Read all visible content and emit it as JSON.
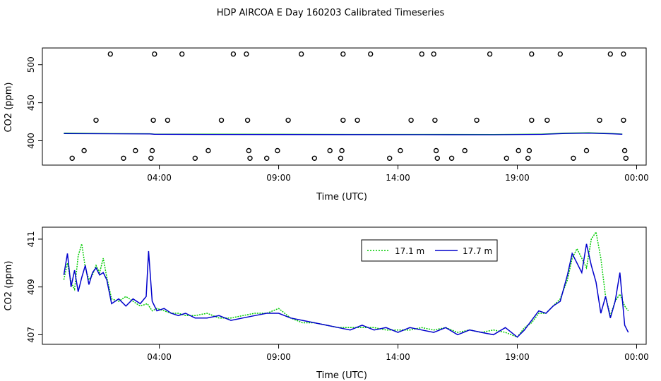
{
  "figure": {
    "title": "HDP AIRCOA E  Day 160203  Calibrated Timeseries"
  },
  "colors": {
    "green_series": "#00cc00",
    "blue_series": "#0000cc",
    "markers": "#000000",
    "frame": "#000000"
  },
  "chart_data": [
    {
      "type": "scatter",
      "xlabel": "Time (UTC)",
      "ylabel": "CO2 (ppm)",
      "x_unit": "hours UTC",
      "xlim": [
        -0.9,
        24.4
      ],
      "ylim": [
        368,
        522
      ],
      "x_ticks": [
        4,
        9,
        14,
        19,
        24
      ],
      "x_tick_labels": [
        "04:00",
        "09:00",
        "14:00",
        "19:00",
        "00:00"
      ],
      "y_ticks": [
        400,
        450,
        500
      ],
      "y_tick_labels": [
        "400",
        "450",
        "500"
      ],
      "grid": false,
      "legend": "none",
      "points": [
        {
          "x": 1.95,
          "y": 514
        },
        {
          "x": 3.8,
          "y": 514
        },
        {
          "x": 4.95,
          "y": 514
        },
        {
          "x": 7.1,
          "y": 514
        },
        {
          "x": 7.65,
          "y": 514
        },
        {
          "x": 9.95,
          "y": 514
        },
        {
          "x": 11.7,
          "y": 514
        },
        {
          "x": 12.85,
          "y": 514
        },
        {
          "x": 15.0,
          "y": 514
        },
        {
          "x": 15.5,
          "y": 514
        },
        {
          "x": 17.85,
          "y": 514
        },
        {
          "x": 19.6,
          "y": 514
        },
        {
          "x": 20.8,
          "y": 514
        },
        {
          "x": 22.9,
          "y": 514
        },
        {
          "x": 23.45,
          "y": 514
        },
        {
          "x": 1.35,
          "y": 427
        },
        {
          "x": 3.75,
          "y": 427
        },
        {
          "x": 4.35,
          "y": 427
        },
        {
          "x": 6.6,
          "y": 427
        },
        {
          "x": 7.7,
          "y": 427
        },
        {
          "x": 9.4,
          "y": 427
        },
        {
          "x": 11.7,
          "y": 427
        },
        {
          "x": 12.3,
          "y": 427
        },
        {
          "x": 14.55,
          "y": 427
        },
        {
          "x": 15.55,
          "y": 427
        },
        {
          "x": 17.3,
          "y": 427
        },
        {
          "x": 19.6,
          "y": 427
        },
        {
          "x": 20.25,
          "y": 427
        },
        {
          "x": 22.45,
          "y": 427
        },
        {
          "x": 23.45,
          "y": 427
        },
        {
          "x": 0.85,
          "y": 387
        },
        {
          "x": 3.0,
          "y": 387
        },
        {
          "x": 3.7,
          "y": 387
        },
        {
          "x": 6.05,
          "y": 387
        },
        {
          "x": 7.75,
          "y": 387
        },
        {
          "x": 8.95,
          "y": 387
        },
        {
          "x": 11.15,
          "y": 387
        },
        {
          "x": 11.65,
          "y": 387
        },
        {
          "x": 14.1,
          "y": 387
        },
        {
          "x": 15.6,
          "y": 387
        },
        {
          "x": 16.8,
          "y": 387
        },
        {
          "x": 19.05,
          "y": 387
        },
        {
          "x": 19.5,
          "y": 387
        },
        {
          "x": 21.9,
          "y": 387
        },
        {
          "x": 23.5,
          "y": 387
        },
        {
          "x": 0.35,
          "y": 377
        },
        {
          "x": 2.5,
          "y": 377
        },
        {
          "x": 3.65,
          "y": 377
        },
        {
          "x": 5.5,
          "y": 377
        },
        {
          "x": 7.8,
          "y": 377
        },
        {
          "x": 8.5,
          "y": 377
        },
        {
          "x": 10.5,
          "y": 377
        },
        {
          "x": 11.6,
          "y": 377
        },
        {
          "x": 13.65,
          "y": 377
        },
        {
          "x": 15.65,
          "y": 377
        },
        {
          "x": 16.25,
          "y": 377
        },
        {
          "x": 18.55,
          "y": 377
        },
        {
          "x": 19.45,
          "y": 377
        },
        {
          "x": 21.35,
          "y": 377
        },
        {
          "x": 23.55,
          "y": 377
        }
      ],
      "series": [
        {
          "values": [
            [
              0.0,
              410
            ],
            [
              2.0,
              409.5
            ],
            [
              3.6,
              409.3
            ],
            [
              3.8,
              408.7
            ],
            [
              6,
              408.6
            ],
            [
              9,
              408.5
            ],
            [
              12,
              408.4
            ],
            [
              15,
              408.4
            ],
            [
              18,
              408.3
            ],
            [
              20,
              408.7
            ],
            [
              21,
              410
            ],
            [
              22,
              410.5
            ],
            [
              23.0,
              409.5
            ],
            [
              23.4,
              408.8
            ]
          ]
        },
        {
          "values": [
            [
              0.0,
              409.5
            ],
            [
              2.0,
              409.2
            ],
            [
              3.6,
              409.0
            ],
            [
              3.8,
              408.5
            ],
            [
              6,
              408.3
            ],
            [
              9,
              408.2
            ],
            [
              12,
              408.1
            ],
            [
              15,
              408.0
            ],
            [
              18,
              407.9
            ],
            [
              20,
              408.4
            ],
            [
              21,
              409.6
            ],
            [
              22,
              410.0
            ],
            [
              23.0,
              409.1
            ],
            [
              23.4,
              408.5
            ]
          ]
        }
      ]
    },
    {
      "type": "line",
      "xlabel": "Time (UTC)",
      "ylabel": "CO2 (ppm)",
      "x_unit": "hours UTC",
      "xlim": [
        -0.9,
        24.4
      ],
      "ylim": [
        406.6,
        411.5
      ],
      "x_ticks": [
        4,
        9,
        14,
        19,
        24
      ],
      "x_tick_labels": [
        "04:00",
        "09:00",
        "14:00",
        "19:00",
        "00:00"
      ],
      "y_ticks": [
        407,
        409,
        411
      ],
      "y_tick_labels": [
        "407",
        "409",
        "411"
      ],
      "grid": false,
      "legend": "top-right",
      "series": [
        {
          "name": "17.1 m",
          "color": "#00cc00",
          "dash": "dotted",
          "x": [
            0.0,
            0.15,
            0.3,
            0.45,
            0.6,
            0.75,
            0.9,
            1.05,
            1.2,
            1.35,
            1.5,
            1.65,
            1.8,
            2.0,
            2.3,
            2.6,
            2.9,
            3.2,
            3.5,
            3.7,
            3.9,
            4.2,
            4.5,
            4.8,
            5.1,
            5.5,
            6.0,
            6.5,
            7.0,
            7.5,
            8.0,
            8.5,
            9.0,
            9.5,
            10.0,
            10.5,
            11.0,
            11.5,
            12.0,
            12.5,
            13.0,
            13.5,
            14.0,
            14.5,
            15.0,
            15.5,
            16.0,
            16.5,
            17.0,
            17.5,
            18.0,
            18.5,
            19.0,
            19.3,
            19.6,
            19.9,
            20.2,
            20.5,
            20.8,
            21.1,
            21.3,
            21.5,
            21.7,
            21.9,
            22.1,
            22.3,
            22.5,
            22.7,
            22.9,
            23.1,
            23.3,
            23.5,
            23.65
          ],
          "values": [
            409.3,
            410.0,
            409.2,
            408.9,
            410.3,
            410.8,
            409.8,
            409.3,
            409.5,
            409.9,
            409.6,
            410.2,
            409.4,
            408.5,
            408.4,
            408.6,
            408.4,
            408.2,
            408.3,
            408.0,
            408.1,
            408.0,
            407.9,
            407.9,
            407.8,
            407.8,
            407.9,
            407.7,
            407.7,
            407.8,
            407.9,
            407.9,
            408.1,
            407.7,
            407.5,
            407.5,
            407.4,
            407.3,
            407.3,
            407.3,
            407.3,
            407.2,
            407.2,
            407.2,
            407.3,
            407.2,
            407.3,
            407.1,
            407.2,
            407.1,
            407.2,
            407.1,
            406.9,
            407.3,
            407.5,
            407.9,
            407.9,
            408.2,
            408.5,
            409.3,
            410.2,
            410.6,
            410.2,
            409.8,
            411.0,
            411.3,
            410.2,
            408.6,
            407.8,
            408.4,
            408.7,
            408.2,
            408.0
          ]
        },
        {
          "name": "17.7 m",
          "color": "#0000cc",
          "dash": "solid",
          "x": [
            0.0,
            0.15,
            0.3,
            0.45,
            0.6,
            0.75,
            0.9,
            1.05,
            1.2,
            1.35,
            1.5,
            1.65,
            1.8,
            2.0,
            2.3,
            2.6,
            2.9,
            3.2,
            3.45,
            3.55,
            3.7,
            3.9,
            4.2,
            4.5,
            4.8,
            5.1,
            5.5,
            6.0,
            6.5,
            7.0,
            7.5,
            8.0,
            8.5,
            9.0,
            9.5,
            10.0,
            10.5,
            11.0,
            11.5,
            12.0,
            12.5,
            13.0,
            13.5,
            14.0,
            14.5,
            15.0,
            15.5,
            16.0,
            16.5,
            17.0,
            17.5,
            18.0,
            18.5,
            19.0,
            19.3,
            19.6,
            19.9,
            20.2,
            20.5,
            20.8,
            21.1,
            21.3,
            21.5,
            21.7,
            21.9,
            22.1,
            22.3,
            22.5,
            22.7,
            22.9,
            23.1,
            23.3,
            23.5,
            23.65
          ],
          "values": [
            409.5,
            410.4,
            409.0,
            409.7,
            408.8,
            409.4,
            409.9,
            409.1,
            409.6,
            409.8,
            409.5,
            409.6,
            409.3,
            408.3,
            408.5,
            408.2,
            408.5,
            408.3,
            408.6,
            410.5,
            408.4,
            408.0,
            408.1,
            407.9,
            407.8,
            407.9,
            407.7,
            407.7,
            407.8,
            407.6,
            407.7,
            407.8,
            407.9,
            407.9,
            407.7,
            407.6,
            407.5,
            407.4,
            407.3,
            407.2,
            407.4,
            407.2,
            407.3,
            407.1,
            407.3,
            407.2,
            407.1,
            407.3,
            407.0,
            407.2,
            407.1,
            407.0,
            407.3,
            406.9,
            407.2,
            407.6,
            408.0,
            407.9,
            408.2,
            408.4,
            409.5,
            410.4,
            410.0,
            409.6,
            410.8,
            409.9,
            409.2,
            407.9,
            408.6,
            407.7,
            408.4,
            409.6,
            407.4,
            407.1
          ]
        }
      ]
    }
  ]
}
